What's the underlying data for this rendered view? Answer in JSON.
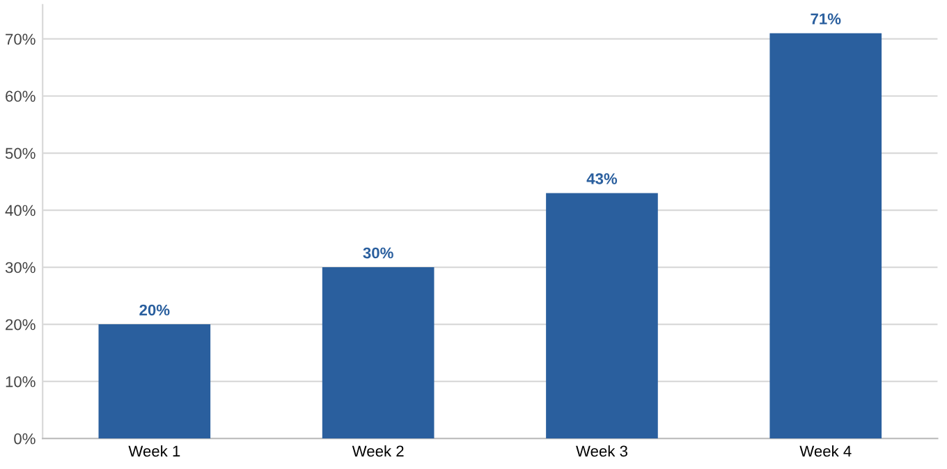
{
  "chart_data": {
    "type": "bar",
    "categories": [
      "Week 1",
      "Week 2",
      "Week 3",
      "Week 4"
    ],
    "values": [
      20,
      30,
      43,
      71
    ],
    "value_labels": [
      "20%",
      "30%",
      "43%",
      "71%"
    ],
    "color": "#2a5f9e",
    "ylim": [
      0,
      76
    ],
    "yticks": [
      {
        "value": 0,
        "label": "0%"
      },
      {
        "value": 10,
        "label": "10%"
      },
      {
        "value": 20,
        "label": "20%"
      },
      {
        "value": 30,
        "label": "30%"
      },
      {
        "value": 40,
        "label": "40%"
      },
      {
        "value": 50,
        "label": "50%"
      },
      {
        "value": 60,
        "label": "60%"
      },
      {
        "value": 70,
        "label": "70%"
      }
    ],
    "grid": "y",
    "legend": false
  }
}
